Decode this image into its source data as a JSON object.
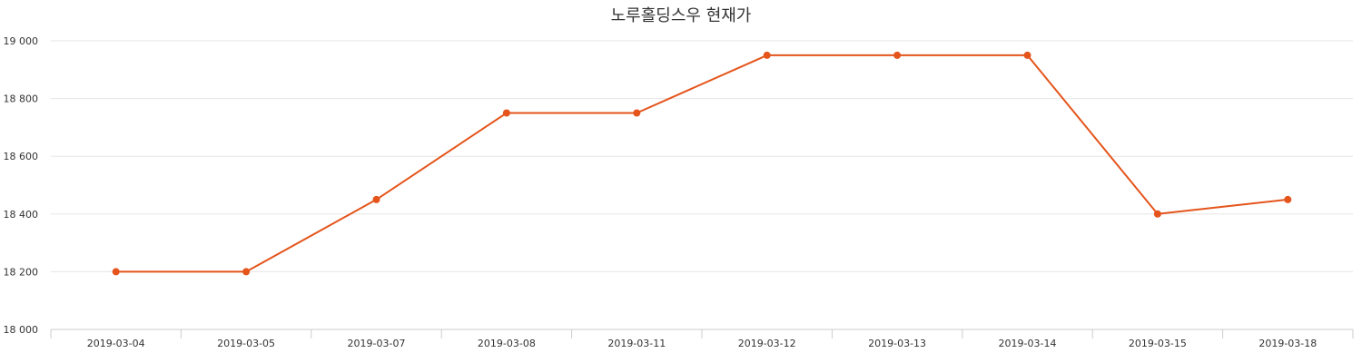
{
  "chart_data": {
    "type": "line",
    "title": "노루홀딩스우 현재가",
    "xlabel": "",
    "ylabel": "",
    "categories": [
      "2019-03-04",
      "2019-03-05",
      "2019-03-07",
      "2019-03-08",
      "2019-03-11",
      "2019-03-12",
      "2019-03-13",
      "2019-03-14",
      "2019-03-15",
      "2019-03-18"
    ],
    "series": [
      {
        "color": "#e4541b",
        "values": [
          18200,
          18200,
          18450,
          18750,
          18750,
          18950,
          18950,
          18950,
          18400,
          18450
        ]
      }
    ],
    "ylim": [
      18000,
      19000
    ],
    "yticks": [
      18000,
      18200,
      18400,
      18600,
      18800,
      19000
    ],
    "ytick_labels": [
      "18 000",
      "18 200",
      "18 400",
      "18 600",
      "18 800",
      "19 000"
    ],
    "grid": true,
    "legend": "none"
  }
}
